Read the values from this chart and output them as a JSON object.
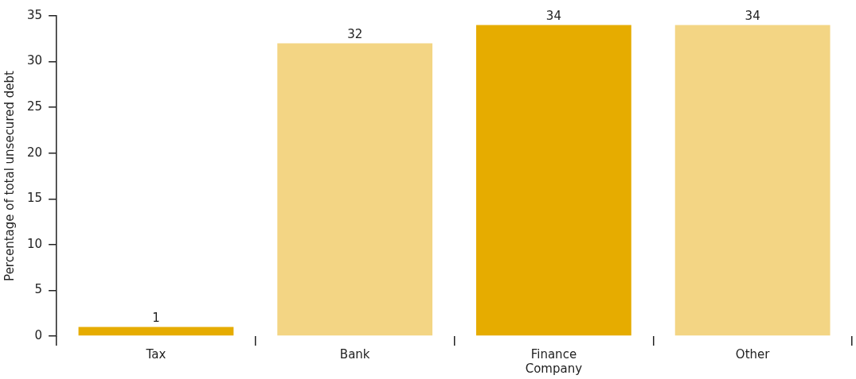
{
  "chart_data": {
    "type": "bar",
    "ylabel": "Percentage of total unsecured debt",
    "categories": [
      "Tax",
      "Bank",
      "Finance Company",
      "Other"
    ],
    "values": [
      1,
      32,
      34,
      34
    ],
    "colors": [
      "#e6ac00",
      "#f3d584",
      "#e6ac00",
      "#f3d584"
    ],
    "ylim": [
      0,
      35
    ],
    "yticks": [
      0,
      5,
      10,
      15,
      20,
      25,
      30,
      35
    ],
    "data_labels": true,
    "legend": false,
    "grid": false
  }
}
